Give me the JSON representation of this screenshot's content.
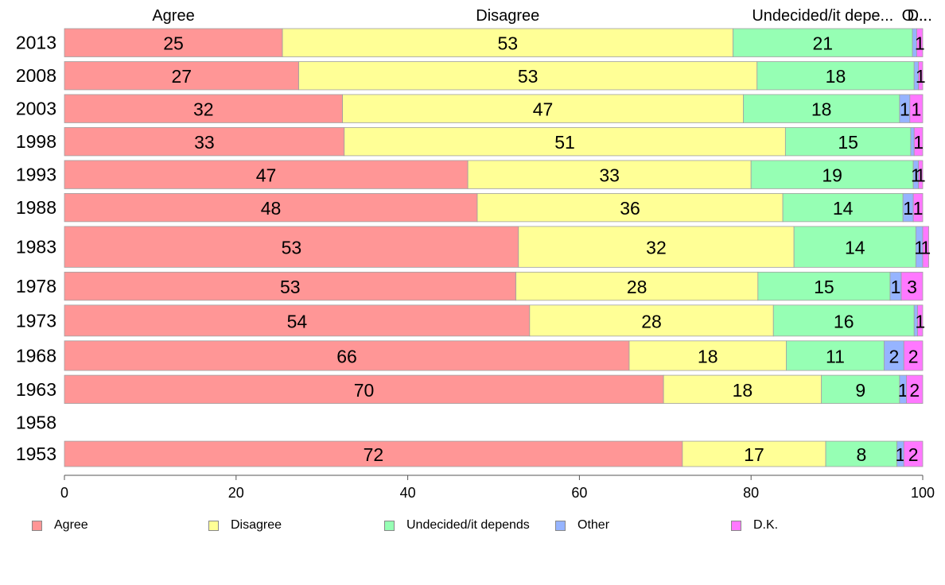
{
  "chart_data": {
    "type": "bar",
    "orientation": "horizontal",
    "stacked": true,
    "categories": [
      "2013",
      "2008",
      "2003",
      "1998",
      "1993",
      "1988",
      "1983",
      "1978",
      "1973",
      "1968",
      "1963",
      "1958",
      "1953"
    ],
    "series": [
      {
        "name": "Agree",
        "color": "#ff9696",
        "values": [
          25.4,
          27.3,
          32.4,
          32.6,
          47.0,
          48.1,
          52.9,
          52.6,
          54.2,
          65.8,
          69.8,
          null,
          72.0
        ]
      },
      {
        "name": "Disagree",
        "color": "#ffff96",
        "values": [
          52.5,
          53.4,
          46.7,
          51.4,
          33.0,
          35.6,
          32.1,
          28.2,
          28.4,
          18.3,
          18.4,
          null,
          16.7
        ]
      },
      {
        "name": "Undecided/it depends",
        "color": "#96ffb4",
        "values": [
          20.9,
          18.3,
          18.2,
          14.6,
          18.9,
          14.0,
          14.2,
          15.4,
          16.4,
          11.4,
          9.1,
          null,
          8.3
        ]
      },
      {
        "name": "Other",
        "color": "#96b4ff",
        "values": [
          0.5,
          0.5,
          1.2,
          0.4,
          0.6,
          1.2,
          0.8,
          1.3,
          0.4,
          2.3,
          0.8,
          null,
          0.8
        ]
      },
      {
        "name": "D.K.",
        "color": "#ff78ff",
        "values": [
          0.7,
          0.5,
          1.5,
          1.0,
          0.5,
          1.1,
          0.7,
          2.5,
          0.6,
          2.2,
          1.9,
          null,
          2.2
        ]
      }
    ],
    "data_labels": [
      [
        "25",
        "53",
        "21",
        "",
        "1"
      ],
      [
        "27",
        "53",
        "18",
        "",
        "1"
      ],
      [
        "32",
        "47",
        "18",
        "1",
        "1"
      ],
      [
        "33",
        "51",
        "15",
        "",
        "1"
      ],
      [
        "47",
        "33",
        "19",
        "1",
        "1"
      ],
      [
        "48",
        "36",
        "14",
        "1",
        "1"
      ],
      [
        "53",
        "32",
        "14",
        "1",
        "1"
      ],
      [
        "53",
        "28",
        "15",
        "1",
        "3"
      ],
      [
        "54",
        "28",
        "16",
        "",
        "1"
      ],
      [
        "66",
        "18",
        "11",
        "2",
        "2"
      ],
      [
        "70",
        "18",
        "9",
        "1",
        "2"
      ],
      [
        "",
        "",
        "",
        "",
        ""
      ],
      [
        "72",
        "17",
        "8",
        "1",
        "2"
      ]
    ],
    "sample_weights": [
      1,
      1,
      1,
      1,
      1,
      1,
      1.45,
      1,
      1.1,
      1.05,
      1,
      1,
      0.9
    ],
    "xlim": [
      0,
      100
    ],
    "xticks": [
      "0",
      "20",
      "40",
      "60",
      "80",
      "100"
    ],
    "top_labels": [
      "Agree",
      "Disagree",
      "Undecided/it depe...",
      "O...",
      "D..."
    ],
    "legend_position": "bottom",
    "grid": false
  }
}
